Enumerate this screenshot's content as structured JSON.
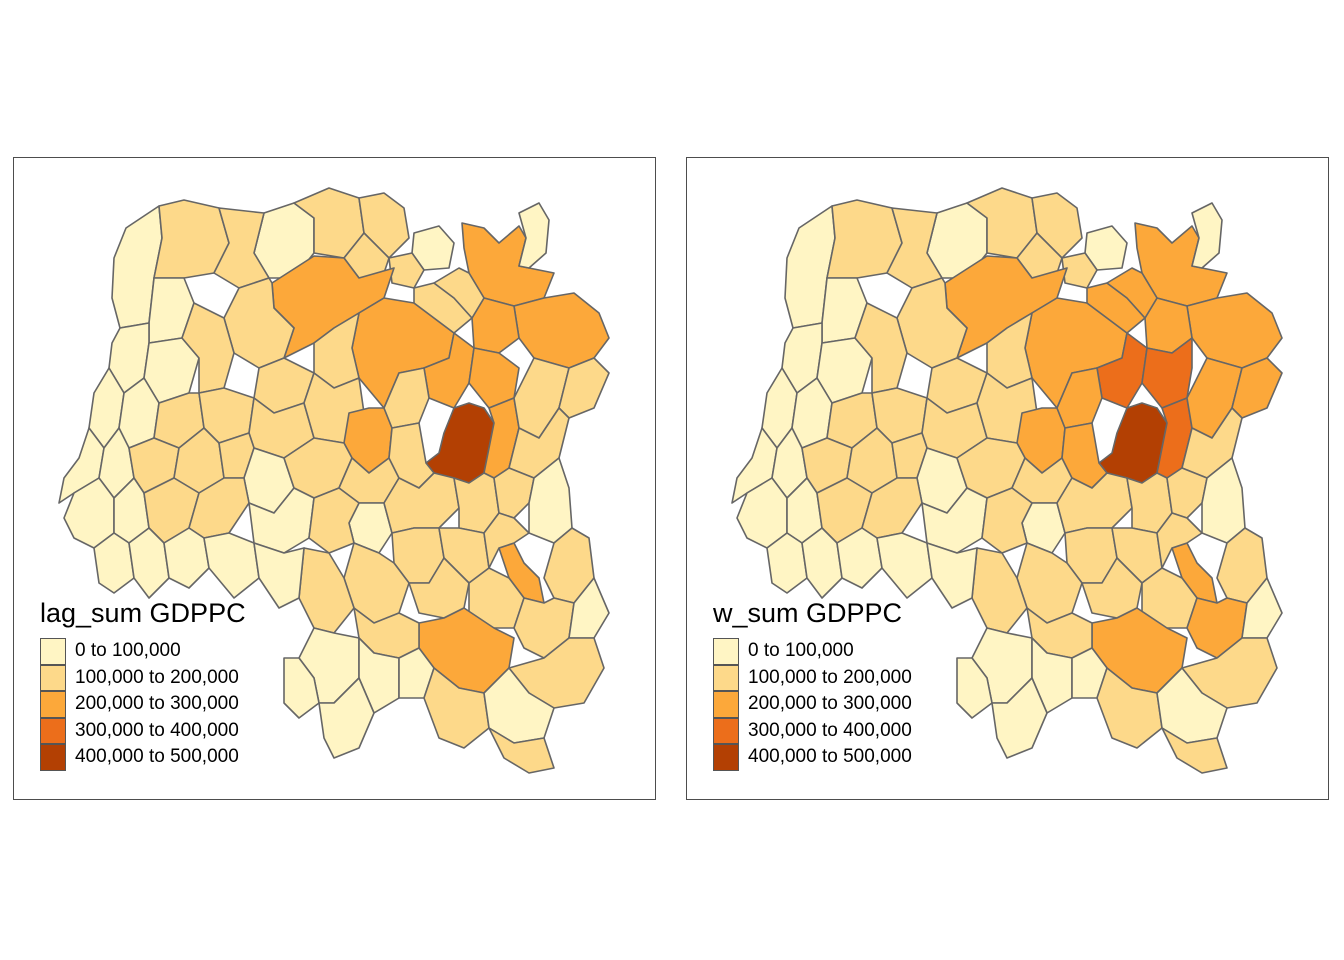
{
  "palette": {
    "c1": "#fff5c4",
    "c2": "#fdd98a",
    "c3": "#fca83a",
    "c4": "#ec6e1b",
    "c5": "#b34003",
    "stroke": "#666666"
  },
  "maps": [
    {
      "legend_title": "lag_sum GDPPC",
      "legend": [
        {
          "label": "0 to 100,000",
          "color": "#fff5c4"
        },
        {
          "label": "100,000 to 200,000",
          "color": "#fdd98a"
        },
        {
          "label": "200,000 to 300,000",
          "color": "#fca83a"
        },
        {
          "label": "300,000 to 400,000",
          "color": "#ec6e1b"
        },
        {
          "label": "400,000 to 500,000",
          "color": "#b34003"
        }
      ]
    },
    {
      "legend_title": "w_sum GDPPC",
      "legend": [
        {
          "label": "0 to 100,000",
          "color": "#fff5c4"
        },
        {
          "label": "100,000 to 200,000",
          "color": "#fdd98a"
        },
        {
          "label": "200,000 to 300,000",
          "color": "#fca83a"
        },
        {
          "label": "300,000 to 400,000",
          "color": "#ec6e1b"
        },
        {
          "label": "400,000 to 500,000",
          "color": "#b34003"
        }
      ]
    }
  ]
}
